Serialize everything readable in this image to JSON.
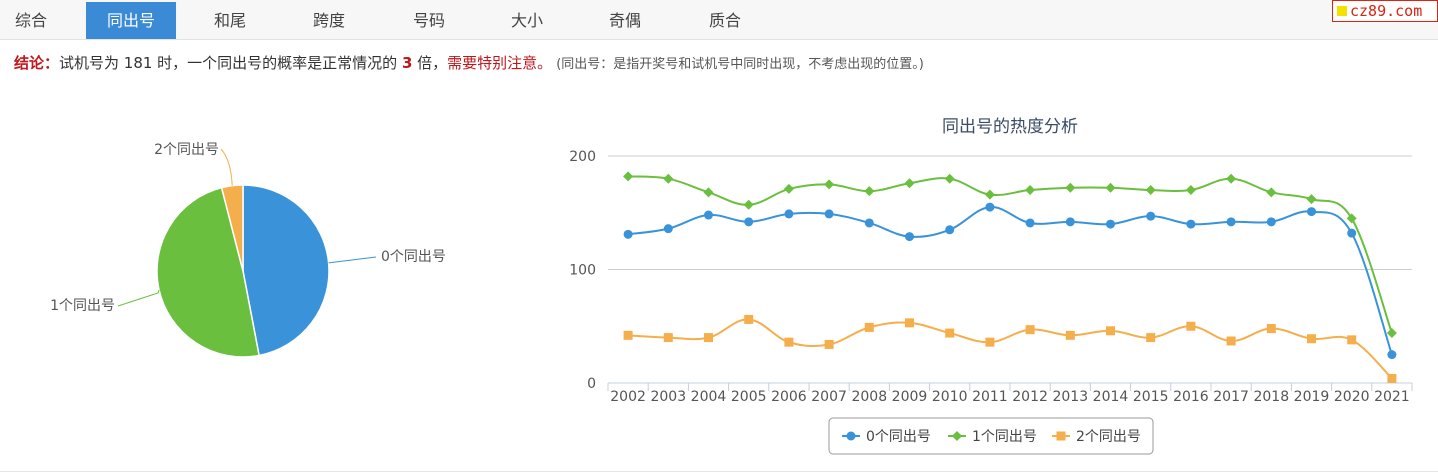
{
  "tabs": [
    "综合",
    "同出号",
    "和尾",
    "跨度",
    "号码",
    "大小",
    "奇偶",
    "质合"
  ],
  "active_tab": 1,
  "brand": "cz89.com",
  "conclusion": {
    "label": "结论：",
    "text_before": "试机号为 181 时，一个同出号的概率是正常情况的 ",
    "multiple": "3",
    "text_after": " 倍，",
    "warning": "需要特别注意。",
    "note": "(同出号：是指开奖号和试机号中同时出现，不考虑出现的位置。)"
  },
  "chart_data": [
    {
      "type": "pie",
      "slices": [
        {
          "label": "0个同出号",
          "value": 47,
          "color": "#3a93d8"
        },
        {
          "label": "1个同出号",
          "value": 49,
          "color": "#6bbf3e"
        },
        {
          "label": "2个同出号",
          "value": 4,
          "color": "#f5ae4c"
        }
      ]
    },
    {
      "type": "line",
      "title": "同出号的热度分析",
      "x": [
        "2002",
        "2003",
        "2004",
        "2005",
        "2006",
        "2007",
        "2008",
        "2009",
        "2010",
        "2011",
        "2012",
        "2013",
        "2014",
        "2015",
        "2016",
        "2017",
        "2018",
        "2019",
        "2020",
        "2021"
      ],
      "ylim": [
        0,
        200
      ],
      "yticks": [
        0,
        100,
        200
      ],
      "grid": true,
      "legend": "bottom",
      "series": [
        {
          "name": "0个同出号",
          "color": "#3a93d8",
          "marker": "circle",
          "values": [
            131,
            136,
            148,
            142,
            149,
            149,
            141,
            129,
            135,
            155,
            141,
            142,
            140,
            147,
            140,
            142,
            142,
            151,
            132,
            25
          ]
        },
        {
          "name": "1个同出号",
          "color": "#6bbf3e",
          "marker": "diamond",
          "values": [
            182,
            180,
            168,
            157,
            171,
            175,
            169,
            176,
            180,
            166,
            170,
            172,
            172,
            170,
            170,
            180,
            168,
            162,
            145,
            44
          ]
        },
        {
          "name": "2个同出号",
          "color": "#f5ae4c",
          "marker": "square",
          "values": [
            42,
            40,
            40,
            56,
            36,
            34,
            49,
            53,
            44,
            36,
            47,
            42,
            46,
            40,
            50,
            37,
            48,
            39,
            38,
            4
          ]
        }
      ]
    }
  ]
}
